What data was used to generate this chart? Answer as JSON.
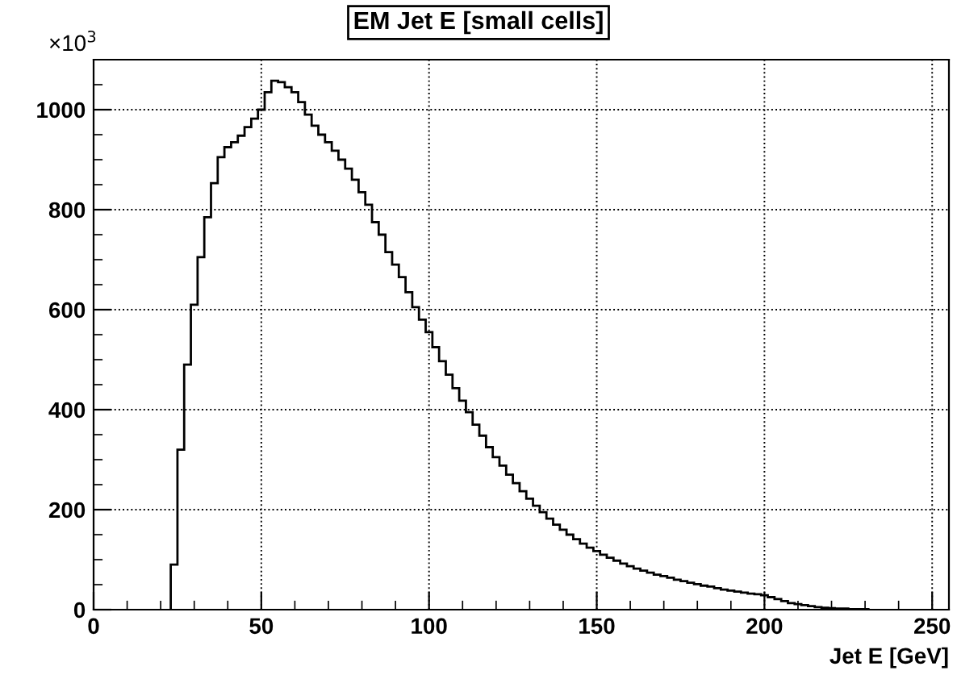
{
  "chart_data": {
    "type": "histogram",
    "title": "EM Jet E [small cells]",
    "xlabel": "Jet E [GeV]",
    "annotations": [
      "×10$^{3}$"
    ],
    "bins": [
      23,
      25,
      27,
      29,
      31,
      33,
      35,
      37,
      39,
      41,
      43,
      45,
      47,
      49,
      51,
      53,
      55,
      57,
      59,
      61,
      63,
      65,
      67,
      69,
      71,
      73,
      75,
      77,
      79,
      81,
      83,
      85,
      87,
      89,
      91,
      93,
      95,
      97,
      99,
      101,
      103,
      105,
      107,
      109,
      111,
      113,
      115,
      117,
      119,
      121,
      123,
      125,
      127,
      129,
      131,
      133,
      135,
      137,
      139,
      141,
      143,
      145,
      147,
      149,
      151,
      153,
      155,
      157,
      159,
      161,
      163,
      165,
      167,
      169,
      171,
      173,
      175,
      177,
      179,
      181,
      183,
      185,
      187,
      189,
      191,
      193,
      195,
      197,
      199,
      201,
      203,
      205,
      207,
      209,
      211,
      213,
      215,
      217,
      219,
      221,
      223,
      225,
      227,
      229,
      231
    ],
    "values": [
      90,
      320,
      490,
      610,
      705,
      785,
      853,
      905,
      925,
      935,
      948,
      965,
      982,
      1000,
      1035,
      1058,
      1055,
      1045,
      1035,
      1015,
      990,
      968,
      950,
      935,
      918,
      900,
      882,
      860,
      835,
      810,
      775,
      750,
      715,
      690,
      665,
      635,
      605,
      580,
      555,
      525,
      497,
      470,
      443,
      418,
      395,
      370,
      348,
      325,
      305,
      288,
      270,
      253,
      237,
      222,
      208,
      195,
      182,
      170,
      160,
      150,
      141,
      132,
      124,
      117,
      110,
      104,
      98,
      92,
      87,
      82,
      78,
      74,
      70,
      67,
      64,
      60,
      57,
      54,
      51,
      48,
      46,
      43,
      40,
      38,
      36,
      34,
      32,
      31,
      29,
      25,
      21,
      17,
      13,
      11,
      9,
      7,
      5,
      4,
      3,
      2,
      2,
      1,
      1,
      1
    ],
    "color": "#000000",
    "xlim": [
      0,
      255
    ],
    "ylim": [
      0,
      1100
    ],
    "xticks": [
      0,
      50,
      100,
      150,
      200,
      250
    ],
    "yticks": [
      0,
      200,
      400,
      600,
      800,
      1000
    ],
    "grid": true
  }
}
